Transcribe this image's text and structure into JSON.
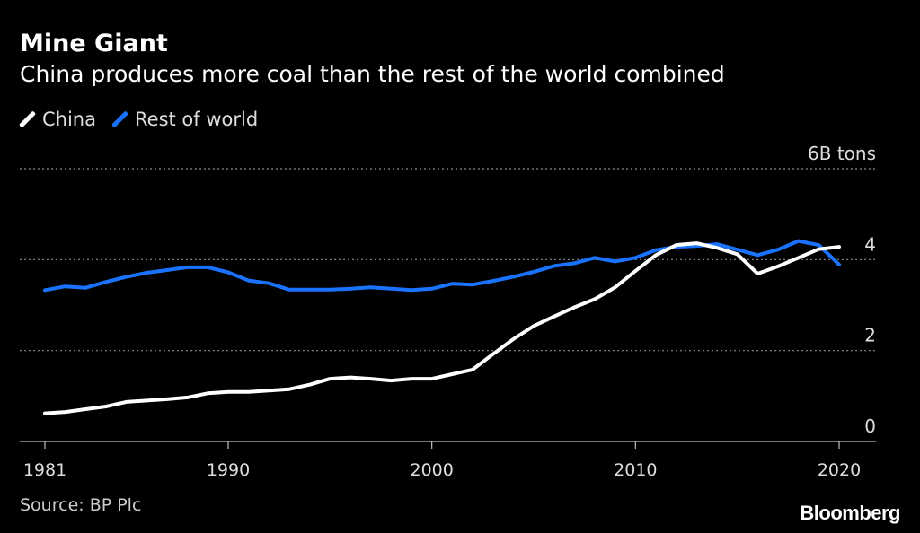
{
  "header": {
    "title": "Mine Giant",
    "subtitle": "China produces more coal than the rest of the world combined"
  },
  "footer": {
    "source": "Source: BP Plc",
    "brand": "Bloomberg"
  },
  "colors": {
    "background": "#000000",
    "china": "#ffffff",
    "rest_of_world": "#1a73ff",
    "grid": "#8a8a8a",
    "axis": "#bfbfbf",
    "tick_label": "#dddddd"
  },
  "chart_data": {
    "type": "line",
    "title": "Mine Giant",
    "subtitle": "China produces more coal than the rest of the world combined",
    "xlabel": "",
    "ylabel": "",
    "y_unit_label": "6B tons",
    "xlim": [
      1981,
      2020
    ],
    "ylim": [
      0,
      6
    ],
    "y_ticks": [
      {
        "value": 0,
        "label": "0"
      },
      {
        "value": 2,
        "label": "2"
      },
      {
        "value": 4,
        "label": "4"
      },
      {
        "value": 6,
        "label": "6B tons"
      }
    ],
    "x_ticks": [
      {
        "value": 1981,
        "label": "1981"
      },
      {
        "value": 1990,
        "label": "1990"
      },
      {
        "value": 2000,
        "label": "2000"
      },
      {
        "value": 2010,
        "label": "2010"
      },
      {
        "value": 2020,
        "label": "2020"
      }
    ],
    "grid": true,
    "legend_position": "top-left",
    "x": [
      1981,
      1982,
      1983,
      1984,
      1985,
      1986,
      1987,
      1988,
      1989,
      1990,
      1991,
      1992,
      1993,
      1994,
      1995,
      1996,
      1997,
      1998,
      1999,
      2000,
      2001,
      2002,
      2003,
      2004,
      2005,
      2006,
      2007,
      2008,
      2009,
      2010,
      2011,
      2012,
      2013,
      2014,
      2015,
      2016,
      2017,
      2018,
      2019,
      2020
    ],
    "series": [
      {
        "name": "China",
        "color": "#ffffff",
        "values": [
          0.62,
          0.65,
          0.71,
          0.77,
          0.87,
          0.9,
          0.93,
          0.97,
          1.06,
          1.09,
          1.09,
          1.12,
          1.15,
          1.25,
          1.38,
          1.41,
          1.38,
          1.34,
          1.38,
          1.38,
          1.48,
          1.58,
          1.92,
          2.25,
          2.54,
          2.75,
          2.95,
          3.13,
          3.39,
          3.75,
          4.1,
          4.32,
          4.36,
          4.26,
          4.12,
          3.69,
          3.85,
          4.04,
          4.23,
          4.28
        ]
      },
      {
        "name": "Rest of world",
        "color": "#1a73ff",
        "values": [
          3.33,
          3.41,
          3.38,
          3.51,
          3.62,
          3.71,
          3.77,
          3.83,
          3.83,
          3.72,
          3.54,
          3.48,
          3.34,
          3.34,
          3.34,
          3.36,
          3.39,
          3.36,
          3.33,
          3.36,
          3.47,
          3.45,
          3.53,
          3.62,
          3.73,
          3.86,
          3.92,
          4.04,
          3.96,
          4.04,
          4.21,
          4.28,
          4.3,
          4.34,
          4.22,
          4.1,
          4.22,
          4.41,
          4.32,
          3.89
        ]
      }
    ]
  }
}
